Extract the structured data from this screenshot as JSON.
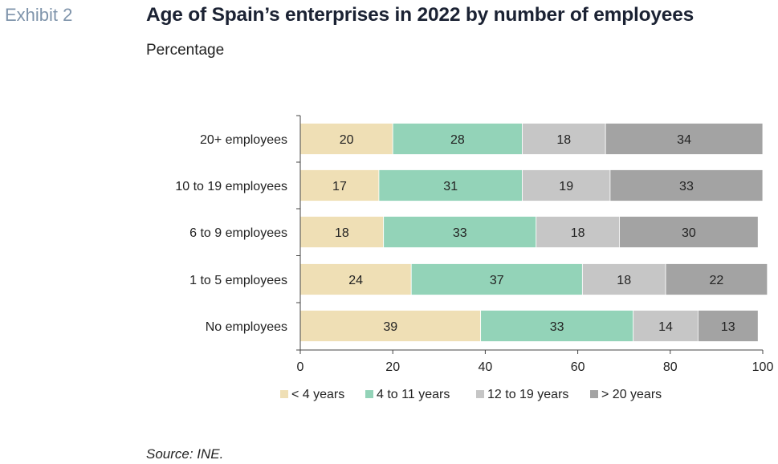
{
  "header": {
    "exhibit": "Exhibit 2",
    "title": "Age of Spain’s enterprises in 2022 by number of employees",
    "subtitle": "Percentage"
  },
  "source": "Source: INE.",
  "colors": {
    "series": [
      "#efdfb5",
      "#93d3b8",
      "#c6c6c6",
      "#a3a3a3"
    ],
    "axis": "#444444",
    "separator": "#ffffff"
  },
  "chart_data": {
    "type": "bar",
    "orientation": "horizontal",
    "stacked": true,
    "categories": [
      "20+ employees",
      "10 to 19 employees",
      "6 to 9 employees",
      "1 to 5 employees",
      "No employees"
    ],
    "series": [
      {
        "name": "< 4 years",
        "values": [
          20,
          17,
          18,
          24,
          39
        ]
      },
      {
        "name": "4 to 11 years",
        "values": [
          28,
          31,
          33,
          37,
          33
        ]
      },
      {
        "name": "12 to 19 years",
        "values": [
          18,
          19,
          18,
          18,
          14
        ]
      },
      {
        "name": "> 20 years",
        "values": [
          34,
          33,
          30,
          22,
          13
        ]
      }
    ],
    "xlim": [
      0,
      100
    ],
    "xticks": [
      "0",
      "20",
      "40",
      "60",
      "80",
      "100"
    ],
    "grid": false,
    "legend": "bottom"
  }
}
